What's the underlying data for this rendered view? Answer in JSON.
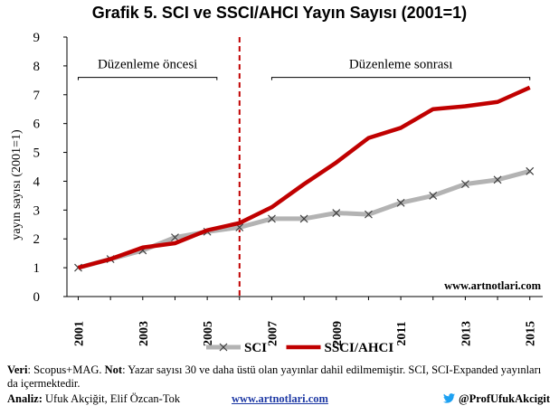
{
  "header": {
    "title": "Grafik 5. SCI ve SSCI/AHCI Yayın Sayısı (2001=1)"
  },
  "chart_data": {
    "type": "line",
    "x": [
      2001,
      2002,
      2003,
      2004,
      2005,
      2006,
      2007,
      2008,
      2009,
      2010,
      2011,
      2012,
      2013,
      2014,
      2015
    ],
    "x_tick_labels": [
      "2001",
      "2003",
      "2005",
      "2007",
      "2009",
      "2011",
      "2013",
      "2015"
    ],
    "ylabel": "yayın sayısı (2001=1)",
    "ylim": [
      0,
      9
    ],
    "y_ticks": [
      0,
      1,
      2,
      3,
      4,
      5,
      6,
      7,
      8,
      9
    ],
    "grid": false,
    "legend_position": "bottom",
    "series": [
      {
        "name": "SCI",
        "color": "#b3b3b3",
        "marker": "x",
        "values": [
          1.0,
          1.3,
          1.6,
          2.05,
          2.25,
          2.4,
          2.7,
          2.7,
          2.9,
          2.85,
          3.25,
          3.5,
          3.9,
          4.05,
          4.35
        ]
      },
      {
        "name": "SSCI/AHCI",
        "color": "#c00000",
        "marker": "none",
        "values": [
          1.0,
          1.3,
          1.7,
          1.85,
          2.3,
          2.55,
          3.1,
          3.9,
          4.65,
          5.5,
          5.85,
          6.5,
          6.6,
          6.75,
          7.25
        ]
      }
    ],
    "divider": {
      "x": 2006,
      "color": "#c00000",
      "style": "dashed"
    },
    "annotations": [
      {
        "text": "Düzenleme öncesi",
        "x_from": 2001,
        "x_to": 2005.3,
        "y": 7.6
      },
      {
        "text": "Düzenleme sonrası",
        "x_from": 2007,
        "x_to": 2015,
        "y": 7.6
      }
    ],
    "watermark": "www.artnotlari.com"
  },
  "footer": {
    "source_label": "Veri",
    "source_text": "Scopus+MAG.",
    "note_label": "Not",
    "note_text": "Yazar sayısı 30 ve daha üstü olan yayınlar dahil edilmemiştir. SCI, SCI-Expanded yayınları da içermektedir.",
    "analysis_label": "Analiz:",
    "analysts": "Ufuk Akçiğit, Elif Özcan-Tok",
    "website": "www.artnotlari.com",
    "twitter_handle": "@ProfUfukAkcigit",
    "twitter_color": "#1da1f2"
  }
}
